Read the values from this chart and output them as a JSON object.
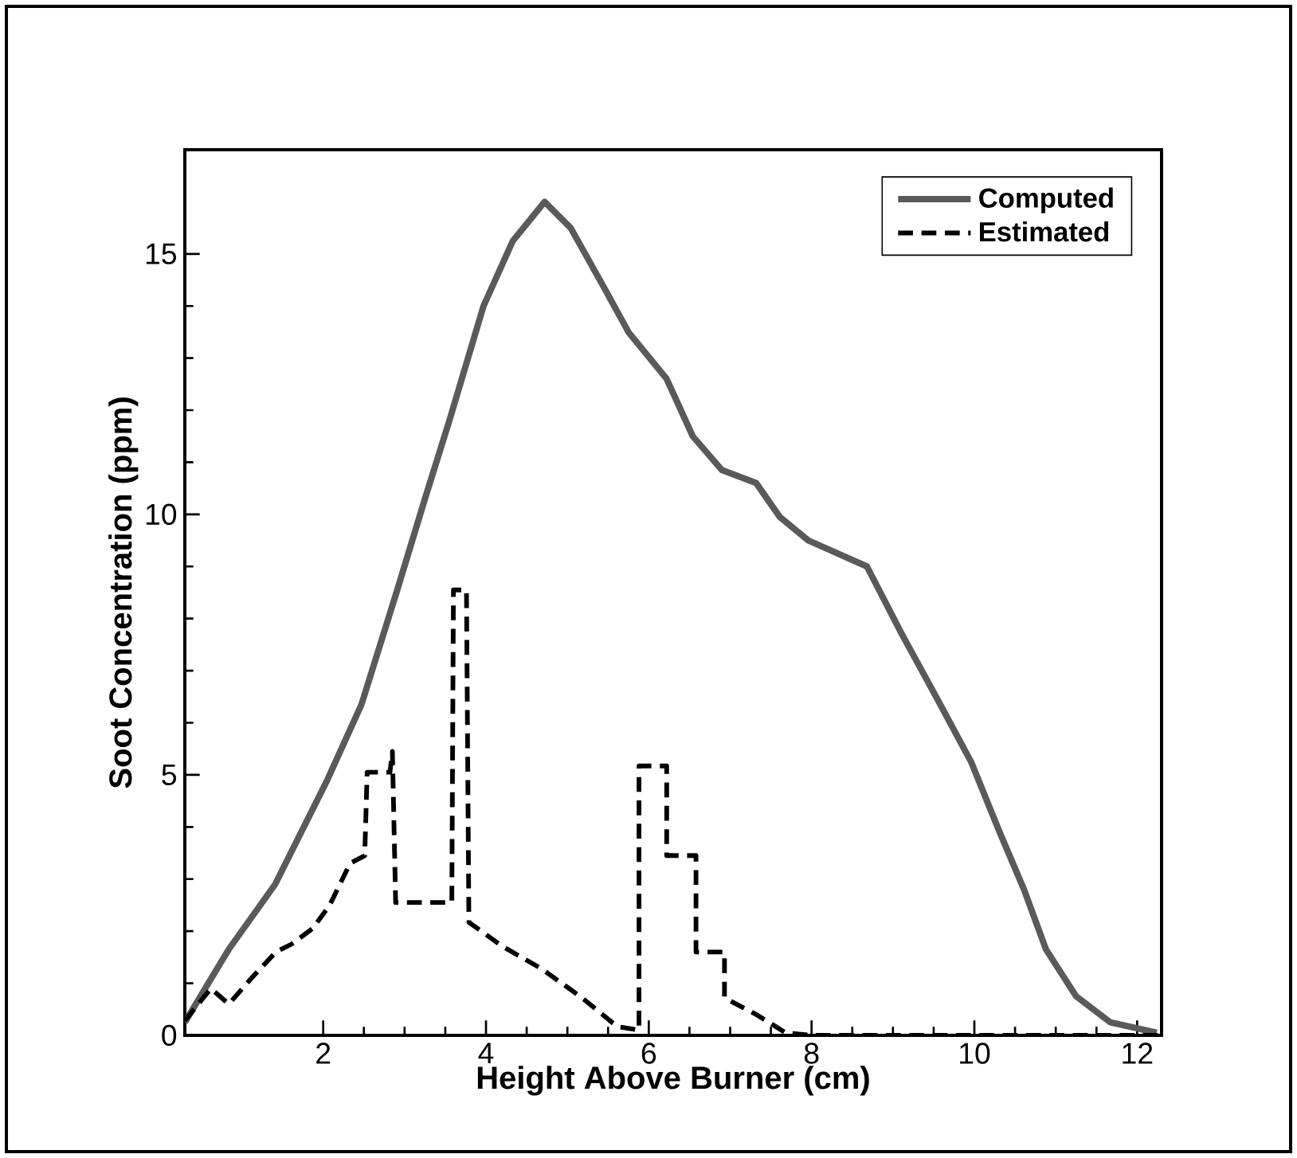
{
  "chart_data": {
    "type": "line",
    "xlabel": "Height Above Burner (cm)",
    "ylabel": "Soot Concentration (ppm)",
    "xlim": [
      0.3,
      12.3
    ],
    "ylim": [
      0,
      17
    ],
    "xticks": [
      2,
      4,
      6,
      8,
      10,
      12
    ],
    "yticks": [
      0,
      5,
      10,
      15
    ],
    "legend": "top right",
    "grid": false,
    "marker": "none",
    "series": [
      {
        "name": "Computed",
        "color": "#5a5a5a",
        "line_style": "solid",
        "x": [
          0.3,
          0.84,
          1.41,
          2.05,
          2.47,
          2.9,
          3.25,
          3.55,
          3.97,
          4.33,
          4.72,
          5.04,
          5.47,
          5.75,
          6.22,
          6.54,
          6.9,
          7.32,
          7.61,
          7.96,
          8.68,
          9.11,
          9.53,
          9.96,
          10.31,
          10.61,
          10.88,
          11.25,
          11.67,
          12.24
        ],
        "values": [
          0.25,
          1.65,
          2.9,
          4.9,
          6.35,
          8.5,
          10.3,
          11.8,
          14.0,
          15.25,
          16.0,
          15.5,
          14.3,
          13.5,
          12.6,
          11.5,
          10.85,
          10.6,
          9.95,
          9.5,
          9.0,
          7.7,
          6.5,
          5.25,
          3.9,
          2.8,
          1.65,
          0.75,
          0.25,
          0.05
        ]
      },
      {
        "name": "Estimated",
        "color": "#000000",
        "line_style": "dashed",
        "x": [
          0.3,
          0.62,
          0.84,
          1.12,
          1.42,
          1.61,
          1.87,
          2.08,
          2.33,
          2.51,
          2.54,
          2.82,
          2.85,
          2.89,
          3.58,
          3.6,
          3.76,
          3.79,
          4.19,
          4.69,
          5.18,
          5.61,
          5.88,
          5.88,
          6.22,
          6.22,
          6.58,
          6.58,
          6.93,
          6.93,
          7.32,
          7.68,
          8.0,
          12.28
        ],
        "values": [
          0.28,
          0.9,
          0.6,
          1.1,
          1.6,
          1.75,
          2.05,
          2.5,
          3.3,
          3.45,
          5.05,
          5.05,
          5.45,
          2.55,
          2.55,
          8.55,
          8.55,
          2.17,
          1.72,
          1.27,
          0.72,
          0.17,
          0.1,
          5.17,
          5.17,
          3.45,
          3.45,
          1.6,
          1.6,
          0.72,
          0.4,
          0.05,
          0,
          0
        ]
      }
    ]
  }
}
